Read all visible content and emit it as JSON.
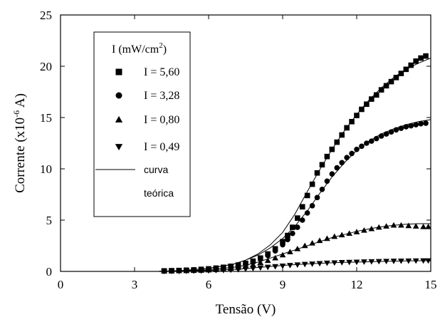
{
  "chart_data": {
    "type": "scatter",
    "xlabel": "Tensão (V)",
    "ylabel_main": "Corrente (x10",
    "ylabel_exp": "-6",
    "ylabel_end": " A)",
    "xlim": [
      0,
      15
    ],
    "ylim": [
      0,
      25
    ],
    "xticks": [
      0,
      3,
      6,
      9,
      12,
      15
    ],
    "yticks": [
      0,
      5,
      10,
      15,
      20,
      25
    ],
    "grid": false,
    "legend": {
      "placement": "top-left",
      "title_main": "I (mW/cm",
      "title_exp": "2",
      "title_end": ")",
      "fit_label_line1": "curva",
      "fit_label_line2": "teórica"
    },
    "series": [
      {
        "name": "I = 5,60",
        "marker": "square",
        "x": [
          4.2,
          4.5,
          4.8,
          5.1,
          5.4,
          5.7,
          6.0,
          6.3,
          6.6,
          6.9,
          7.2,
          7.5,
          7.8,
          8.1,
          8.4,
          8.7,
          9.0,
          9.2,
          9.4,
          9.6,
          9.8,
          10.0,
          10.2,
          10.4,
          10.6,
          10.8,
          11.0,
          11.2,
          11.4,
          11.6,
          11.8,
          12.0,
          12.2,
          12.4,
          12.6,
          12.8,
          13.0,
          13.2,
          13.4,
          13.6,
          13.8,
          14.0,
          14.2,
          14.4,
          14.6,
          14.8
        ],
        "values": [
          0.05,
          0.07,
          0.09,
          0.12,
          0.15,
          0.2,
          0.25,
          0.32,
          0.4,
          0.5,
          0.62,
          0.78,
          1.0,
          1.3,
          1.7,
          2.2,
          2.9,
          3.5,
          4.3,
          5.2,
          6.3,
          7.4,
          8.5,
          9.6,
          10.4,
          11.2,
          11.9,
          12.6,
          13.3,
          14.0,
          14.6,
          15.2,
          15.8,
          16.3,
          16.8,
          17.2,
          17.7,
          18.1,
          18.5,
          18.9,
          19.3,
          19.7,
          20.1,
          20.5,
          20.8,
          21.0
        ]
      },
      {
        "name": "I = 3,28",
        "marker": "circle",
        "x": [
          4.2,
          4.5,
          4.8,
          5.1,
          5.4,
          5.7,
          6.0,
          6.3,
          6.6,
          6.9,
          7.2,
          7.5,
          7.8,
          8.1,
          8.4,
          8.7,
          9.0,
          9.2,
          9.4,
          9.6,
          9.8,
          10.0,
          10.2,
          10.4,
          10.6,
          10.8,
          11.0,
          11.2,
          11.4,
          11.6,
          11.8,
          12.0,
          12.2,
          12.4,
          12.6,
          12.8,
          13.0,
          13.2,
          13.4,
          13.6,
          13.8,
          14.0,
          14.2,
          14.4,
          14.6,
          14.8
        ],
        "values": [
          0.05,
          0.06,
          0.08,
          0.1,
          0.13,
          0.17,
          0.22,
          0.28,
          0.35,
          0.45,
          0.57,
          0.72,
          0.92,
          1.2,
          1.55,
          2.0,
          2.6,
          3.1,
          3.7,
          4.3,
          5.0,
          5.7,
          6.4,
          7.2,
          8.0,
          8.8,
          9.5,
          10.1,
          10.6,
          11.1,
          11.5,
          11.9,
          12.2,
          12.5,
          12.7,
          12.95,
          13.2,
          13.4,
          13.6,
          13.8,
          13.95,
          14.1,
          14.2,
          14.3,
          14.4,
          14.45
        ]
      },
      {
        "name": "I = 0,80",
        "marker": "triangle-up",
        "x": [
          4.2,
          4.5,
          4.8,
          5.1,
          5.4,
          5.7,
          6.0,
          6.3,
          6.6,
          6.9,
          7.2,
          7.5,
          7.8,
          8.1,
          8.4,
          8.7,
          9.0,
          9.3,
          9.6,
          9.9,
          10.2,
          10.5,
          10.8,
          11.1,
          11.4,
          11.7,
          12.0,
          12.3,
          12.6,
          12.9,
          13.2,
          13.5,
          13.8,
          14.1,
          14.4,
          14.7,
          14.9
        ],
        "values": [
          0.03,
          0.04,
          0.05,
          0.06,
          0.08,
          0.1,
          0.13,
          0.17,
          0.22,
          0.3,
          0.38,
          0.5,
          0.65,
          0.85,
          1.05,
          1.3,
          1.6,
          1.9,
          2.2,
          2.5,
          2.75,
          3.0,
          3.2,
          3.4,
          3.55,
          3.7,
          3.85,
          4.0,
          4.15,
          4.3,
          4.4,
          4.5,
          4.5,
          4.45,
          4.4,
          4.35,
          4.35
        ]
      },
      {
        "name": "I = 0,49",
        "marker": "triangle-down",
        "x": [
          4.2,
          4.5,
          4.8,
          5.1,
          5.4,
          5.7,
          6.0,
          6.3,
          6.6,
          6.9,
          7.2,
          7.5,
          7.8,
          8.1,
          8.4,
          8.7,
          9.0,
          9.3,
          9.6,
          9.9,
          10.2,
          10.5,
          10.8,
          11.1,
          11.4,
          11.7,
          12.0,
          12.3,
          12.6,
          12.9,
          13.2,
          13.5,
          13.8,
          14.1,
          14.4,
          14.7,
          14.9
        ],
        "values": [
          0.02,
          0.03,
          0.03,
          0.04,
          0.05,
          0.06,
          0.08,
          0.1,
          0.12,
          0.15,
          0.19,
          0.24,
          0.3,
          0.36,
          0.42,
          0.48,
          0.54,
          0.6,
          0.65,
          0.7,
          0.74,
          0.78,
          0.82,
          0.85,
          0.88,
          0.9,
          0.92,
          0.94,
          0.96,
          0.98,
          1.0,
          1.01,
          1.02,
          1.03,
          1.04,
          1.05,
          1.05
        ]
      }
    ],
    "fit_curves": [
      {
        "x": [
          4,
          5,
          6,
          7,
          7.5,
          8,
          8.5,
          9,
          9.5,
          10,
          10.5,
          11,
          11.5,
          12,
          12.5,
          13,
          13.5,
          14,
          14.5,
          15
        ],
        "values": [
          0.02,
          0.1,
          0.3,
          0.7,
          1.1,
          1.7,
          2.6,
          3.8,
          5.6,
          7.8,
          9.9,
          11.9,
          13.7,
          15.3,
          16.7,
          17.9,
          18.9,
          19.7,
          20.3,
          20.8
        ]
      },
      {
        "x": [
          4,
          5,
          6,
          7,
          7.5,
          8,
          8.5,
          9,
          9.5,
          10,
          10.5,
          11,
          11.5,
          12,
          12.5,
          13,
          13.5,
          14,
          14.5,
          15
        ],
        "values": [
          0.02,
          0.1,
          0.3,
          0.7,
          1.1,
          1.6,
          2.3,
          3.2,
          4.4,
          5.9,
          7.6,
          9.2,
          10.6,
          11.8,
          12.7,
          13.4,
          13.9,
          14.3,
          14.6,
          14.8
        ]
      },
      {
        "x": [
          4,
          5,
          6,
          7,
          7.5,
          8,
          8.5,
          9,
          9.5,
          10,
          10.5,
          11,
          11.5,
          12,
          12.5,
          13,
          13.5,
          14,
          14.5,
          15
        ],
        "values": [
          0.01,
          0.05,
          0.15,
          0.4,
          0.6,
          0.9,
          1.3,
          1.7,
          2.1,
          2.5,
          2.9,
          3.3,
          3.6,
          3.9,
          4.15,
          4.35,
          4.5,
          4.6,
          4.65,
          4.65
        ]
      },
      {
        "x": [
          4,
          5,
          6,
          7,
          7.5,
          8,
          8.5,
          9,
          9.5,
          10,
          10.5,
          11,
          11.5,
          12,
          12.5,
          13,
          13.5,
          14,
          14.5,
          15
        ],
        "values": [
          0.01,
          0.03,
          0.08,
          0.2,
          0.28,
          0.38,
          0.48,
          0.58,
          0.66,
          0.73,
          0.79,
          0.84,
          0.88,
          0.91,
          0.94,
          0.97,
          1.0,
          1.02,
          1.04,
          1.05
        ]
      }
    ]
  }
}
